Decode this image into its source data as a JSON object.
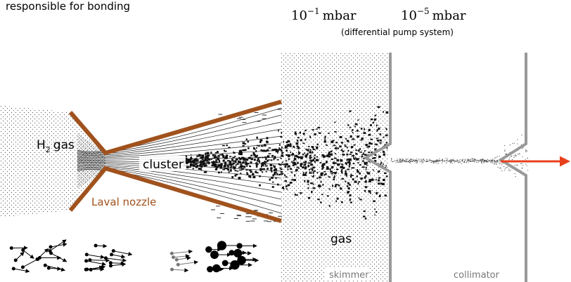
{
  "caption": "responsible for bonding",
  "pressures": [
    {
      "base": "10",
      "exponent": "−1",
      "unit": "mbar"
    },
    {
      "base": "10",
      "exponent": "−5",
      "unit": "mbar"
    }
  ],
  "pressure_note": "(differential pump system)",
  "labels": {
    "gas_source": {
      "element": "H",
      "subscript": "2",
      "rest": "gas"
    },
    "cluster": "cluster",
    "nozzle": "Laval nozzle",
    "gas": "gas",
    "skimmer": "skimmer",
    "collimator": "collimator"
  }
}
